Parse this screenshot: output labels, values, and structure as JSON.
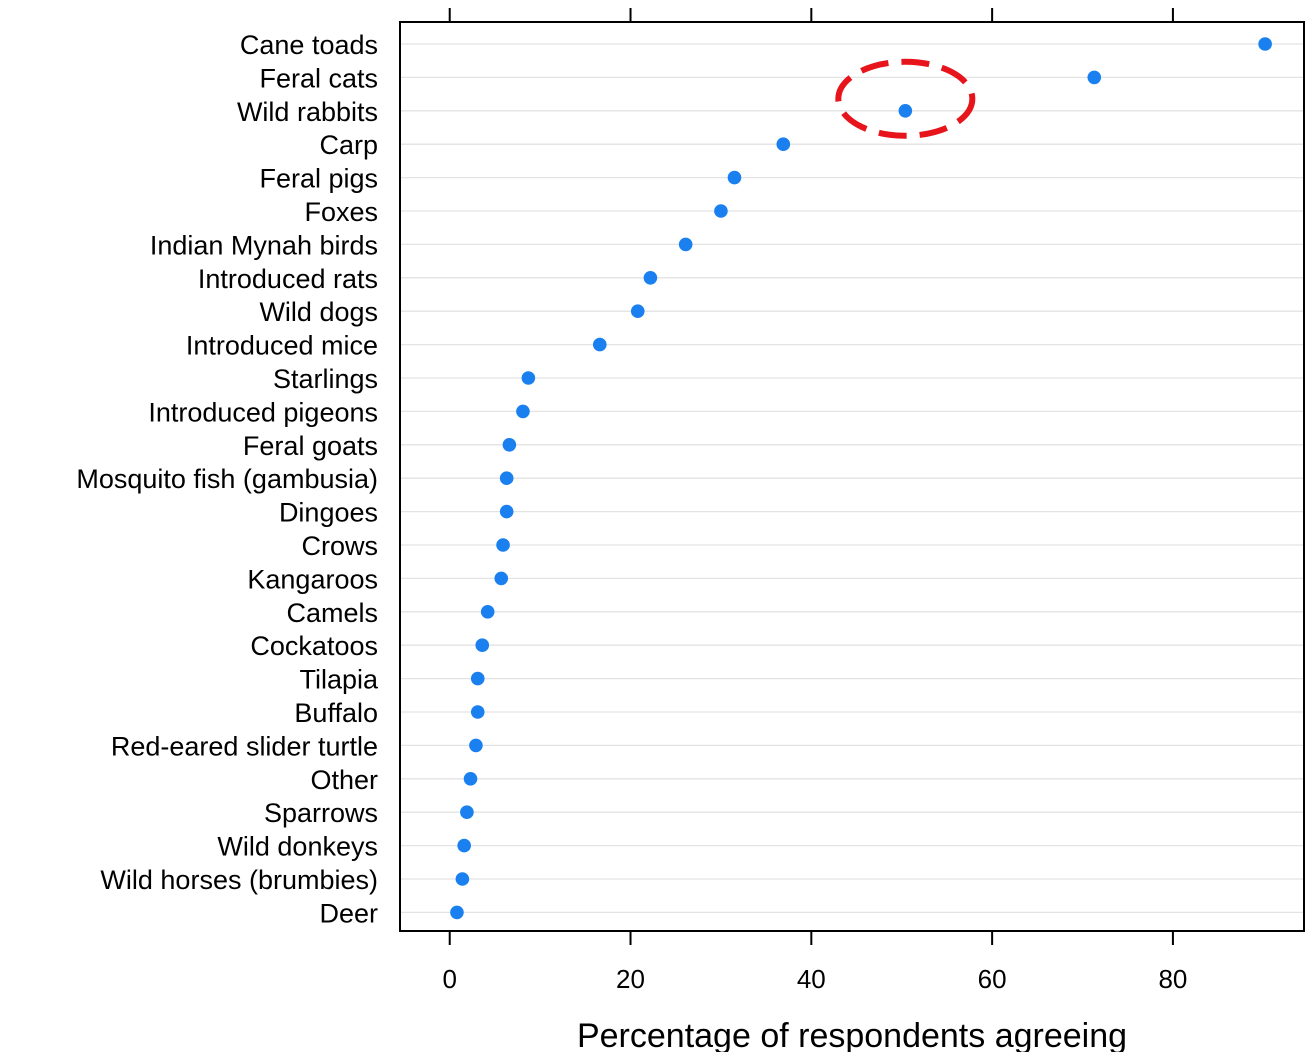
{
  "chart_data": {
    "type": "scatter",
    "title": "",
    "xlabel": "Percentage of respondents agreeing",
    "ylabel": "",
    "xlim": [
      -5.5,
      94.5
    ],
    "xticks": [
      "0",
      "20",
      "40",
      "60",
      "80"
    ],
    "grid": "horizontal",
    "categories": [
      "Cane toads",
      "Feral cats",
      "Wild rabbits",
      "Carp",
      "Feral pigs",
      "Foxes",
      "Indian Mynah birds",
      "Introduced rats",
      "Wild dogs",
      "Introduced mice",
      "Starlings",
      "Introduced pigeons",
      "Feral goats",
      "Mosquito fish (gambusia)",
      "Dingoes",
      "Crows",
      "Kangaroos",
      "Camels",
      "Cockatoos",
      "Tilapia",
      "Buffalo",
      "Red-eared slider turtle",
      "Other",
      "Sparrows",
      "Wild donkeys",
      "Wild horses (brumbies)",
      "Deer"
    ],
    "values": [
      90.2,
      71.3,
      50.4,
      36.9,
      31.5,
      30.0,
      26.1,
      22.2,
      20.8,
      16.6,
      8.7,
      8.1,
      6.6,
      6.3,
      6.3,
      5.9,
      5.7,
      4.2,
      3.6,
      3.1,
      3.1,
      2.9,
      2.3,
      1.9,
      1.6,
      1.4,
      0.8
    ],
    "point_color": "#1a80f0",
    "annotation": {
      "type": "dashed-ellipse",
      "target": "Wild rabbits",
      "color": "#e8141c"
    }
  }
}
